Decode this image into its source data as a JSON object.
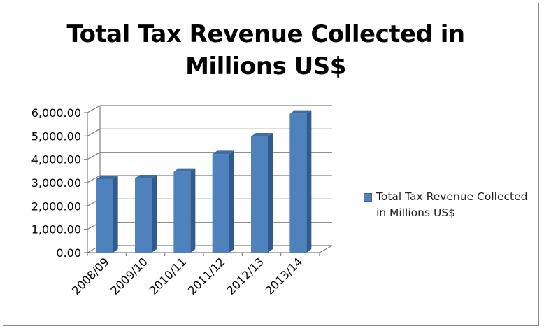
{
  "chart_data": {
    "type": "bar",
    "title": "Total Tax Revenue Collected in\nMillions US$",
    "categories": [
      "2008/09",
      "2009/10",
      "2010/11",
      "2011/12",
      "2012/13",
      "2013/14"
    ],
    "series": [
      {
        "name": "Total Tax Revenue Collected in Millions US$",
        "values": [
          3150,
          3180,
          3460,
          4220,
          4980,
          5950
        ],
        "color": "#4f81bd"
      }
    ],
    "yticks": [
      "0.00",
      "1,000.00",
      "2,000.00",
      "3,000.00",
      "4,000.00",
      "5,000.00",
      "6,000.00"
    ],
    "ylim": [
      0,
      6000
    ],
    "grid": true,
    "legend_position": "right",
    "style": "3d-column"
  }
}
